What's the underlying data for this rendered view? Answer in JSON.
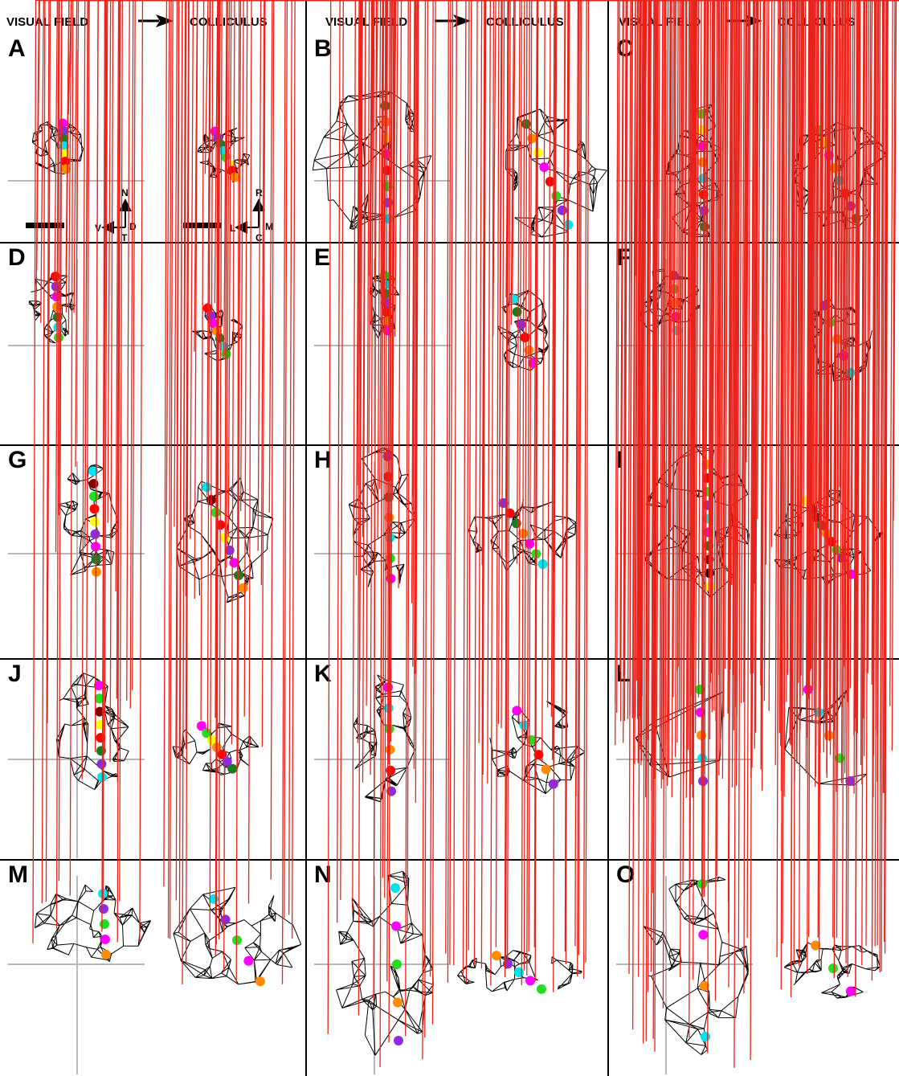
{
  "header": {
    "columns": [
      {
        "left": "VISUAL FIELD",
        "right": "COLLICULUS"
      },
      {
        "left": "VISUAL FIELD",
        "right": "COLLICULUS"
      },
      {
        "left": "VISUAL FIELD",
        "right": "COLLICULUS"
      }
    ]
  },
  "panels": [
    "A",
    "B",
    "C",
    "D",
    "E",
    "F",
    "G",
    "H",
    "I",
    "J",
    "K",
    "L",
    "M",
    "N",
    "O"
  ],
  "compass_visual": {
    "top": "N",
    "left": "V",
    "right": "D",
    "bottom": "T"
  },
  "compass_colliculus": {
    "top": "R",
    "left": "L",
    "right": "M",
    "bottom": "C"
  },
  "colors": {
    "mesh": "#000000",
    "crosshair": "#b8b8b8",
    "cross_marker": "#e8231b",
    "magenta": "#ff00ff",
    "purple": "#8b2be2",
    "darkgreen": "#1e7a1e",
    "cyan": "#00e5ee",
    "yellow": "#ffff00",
    "red": "#ff0000",
    "orange": "#ff8c00",
    "green": "#22dd22",
    "maroon": "#800000",
    "black": "#000000",
    "grey": "#999999"
  },
  "panel_dots": {
    "A": {
      "vf": [
        "magenta",
        "purple",
        "darkgreen",
        "cyan",
        "yellow",
        "red",
        "orange"
      ],
      "sc": [
        "magenta",
        "purple",
        "darkgreen",
        "cyan",
        "green",
        "yellow",
        "red",
        "orange"
      ]
    },
    "B": {
      "vf": [
        "darkgreen",
        "orange",
        "yellow",
        "magenta",
        "red",
        "green",
        "purple",
        "cyan"
      ],
      "sc": [
        "darkgreen",
        "orange",
        "yellow",
        "magenta",
        "red",
        "green",
        "purple",
        "cyan"
      ]
    },
    "C": {
      "vf": [
        "green",
        "yellow",
        "magenta",
        "orange",
        "cyan",
        "red",
        "purple",
        "darkgreen"
      ],
      "sc": [
        "green",
        "yellow",
        "magenta",
        "orange",
        "cyan",
        "red",
        "purple",
        "darkgreen"
      ]
    },
    "D": {
      "vf": [
        "red",
        "purple",
        "magenta",
        "orange",
        "darkgreen",
        "cyan",
        "green"
      ],
      "sc": [
        "red",
        "purple",
        "magenta",
        "orange",
        "darkgreen",
        "cyan",
        "green"
      ]
    },
    "E": {
      "vf": [
        "green",
        "cyan",
        "darkgreen",
        "purple",
        "red",
        "orange",
        "magenta"
      ],
      "sc": [
        "cyan",
        "darkgreen",
        "purple",
        "red",
        "orange",
        "magenta"
      ]
    },
    "F": {
      "vf": [
        "purple",
        "green",
        "orange",
        "magenta",
        "cyan"
      ],
      "sc": [
        "purple",
        "green",
        "orange",
        "magenta",
        "cyan"
      ]
    },
    "G": {
      "vf": [
        "cyan",
        "maroon",
        "green",
        "red",
        "yellow",
        "purple",
        "magenta",
        "darkgreen",
        "orange"
      ],
      "sc": [
        "cyan",
        "maroon",
        "green",
        "red",
        "yellow",
        "purple",
        "magenta",
        "darkgreen",
        "orange"
      ]
    },
    "H": {
      "vf": [
        "purple",
        "red",
        "darkgreen",
        "orange",
        "cyan",
        "green",
        "magenta"
      ],
      "sc": [
        "purple",
        "red",
        "darkgreen",
        "orange",
        "magenta",
        "green",
        "cyan"
      ]
    },
    "I": {
      "vf": [
        "orange",
        "red",
        "green",
        "purple",
        "cyan",
        "magenta",
        "darkgreen",
        "maroon",
        "black",
        "yellow"
      ],
      "sc": [
        "yellow",
        "black",
        "maroon",
        "darkgreen",
        "orange",
        "red",
        "green",
        "purple",
        "cyan",
        "magenta"
      ]
    },
    "J": {
      "vf": [
        "magenta",
        "green",
        "maroon",
        "yellow",
        "red",
        "darkgreen",
        "purple",
        "cyan"
      ],
      "sc": [
        "magenta",
        "green",
        "yellow",
        "orange",
        "red",
        "purple",
        "darkgreen"
      ]
    },
    "K": {
      "vf": [
        "magenta",
        "cyan",
        "green",
        "orange",
        "red",
        "purple"
      ],
      "sc": [
        "magenta",
        "cyan",
        "green",
        "red",
        "orange",
        "purple"
      ]
    },
    "L": {
      "vf": [
        "green",
        "magenta",
        "orange",
        "cyan",
        "purple"
      ],
      "sc": [
        "magenta",
        "cyan",
        "orange",
        "green",
        "purple"
      ]
    },
    "M": {
      "vf": [
        "cyan",
        "purple",
        "green",
        "magenta",
        "orange"
      ],
      "sc": [
        "cyan",
        "purple",
        "green",
        "magenta",
        "orange"
      ]
    },
    "N": {
      "vf": [
        "cyan",
        "magenta",
        "green",
        "orange",
        "purple"
      ],
      "sc": [
        "orange",
        "purple",
        "cyan",
        "magenta",
        "green"
      ]
    },
    "O": {
      "vf": [
        "green",
        "magenta",
        "orange",
        "cyan"
      ],
      "sc": [
        "orange",
        "green",
        "magenta"
      ]
    }
  }
}
